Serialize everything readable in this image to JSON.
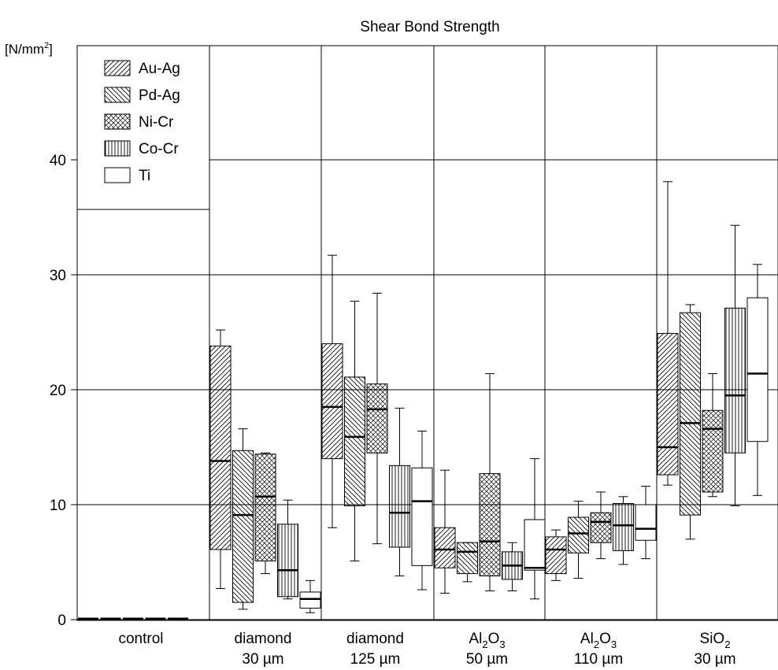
{
  "chart_data": {
    "type": "box",
    "title": "Shear Bond Strength",
    "ylabel": "[N/mm²]",
    "ylim": [
      0,
      48
    ],
    "yticks": [
      0,
      10,
      20,
      30,
      40
    ],
    "grid": true,
    "legend_position": "top-left",
    "groups": [
      {
        "name": "control",
        "line1": "control",
        "line2": ""
      },
      {
        "name": "diamond 30 µm",
        "line1": "diamond",
        "line2": "30 µm"
      },
      {
        "name": "diamond 125 µm",
        "line1": "diamond",
        "line2": "125 µm"
      },
      {
        "name": "Al2O3 50 µm",
        "line1": "Al",
        "sub1": "2",
        "mid": "O",
        "sub2": "3",
        "line2": "50 µm"
      },
      {
        "name": "Al2O3 110 µm",
        "line1": "Al",
        "sub1": "2",
        "mid": "O",
        "sub2": "3",
        "line2": "110 µm"
      },
      {
        "name": "SiO2 30 µm",
        "line1": "SiO",
        "sub1": "2",
        "mid": "",
        "sub2": "",
        "line2": "30 µm"
      }
    ],
    "series": [
      {
        "name": "Au-Ag",
        "pattern": "diag-right",
        "stats": [
          [
            0,
            0,
            0,
            0,
            0
          ],
          [
            2.7,
            6.1,
            13.8,
            23.8,
            25.2
          ],
          [
            8.0,
            14.0,
            18.5,
            24.0,
            31.7
          ],
          [
            2.3,
            4.5,
            6.1,
            8.0,
            13.0
          ],
          [
            3.4,
            4.0,
            6.1,
            7.2,
            7.8
          ],
          [
            11.7,
            12.6,
            15.0,
            24.9,
            38.1
          ]
        ]
      },
      {
        "name": "Pd-Ag",
        "pattern": "diag-left",
        "stats": [
          [
            0,
            0,
            0,
            0,
            0
          ],
          [
            0.9,
            1.5,
            9.1,
            14.7,
            16.6
          ],
          [
            5.1,
            9.9,
            15.9,
            21.1,
            27.7
          ],
          [
            3.3,
            4.0,
            5.9,
            6.7,
            6.7
          ],
          [
            3.6,
            5.8,
            7.5,
            8.9,
            10.3
          ],
          [
            7.0,
            9.1,
            17.1,
            26.7,
            27.4
          ]
        ]
      },
      {
        "name": "Ni-Cr",
        "pattern": "crosshatch",
        "stats": [
          [
            0,
            0,
            0,
            0,
            0
          ],
          [
            4.0,
            5.1,
            10.7,
            14.4,
            14.5
          ],
          [
            6.6,
            14.5,
            18.3,
            20.5,
            28.4
          ],
          [
            2.5,
            3.8,
            6.8,
            12.7,
            21.4
          ],
          [
            5.3,
            6.7,
            8.5,
            9.3,
            11.1
          ],
          [
            10.7,
            11.1,
            16.6,
            18.2,
            21.4
          ]
        ]
      },
      {
        "name": "Co-Cr",
        "pattern": "vertical",
        "stats": [
          [
            0,
            0,
            0,
            0,
            0
          ],
          [
            1.8,
            2.0,
            4.3,
            8.3,
            10.4
          ],
          [
            3.8,
            6.3,
            9.3,
            13.4,
            18.4
          ],
          [
            2.5,
            3.5,
            4.7,
            5.9,
            6.7
          ],
          [
            4.8,
            6.0,
            8.2,
            10.1,
            10.7
          ],
          [
            9.9,
            14.5,
            19.5,
            27.1,
            34.3
          ]
        ]
      },
      {
        "name": "Ti",
        "pattern": "none",
        "stats": [
          [
            0,
            0,
            0,
            0,
            0
          ],
          [
            0.6,
            1.0,
            1.8,
            2.4,
            3.4
          ],
          [
            2.6,
            4.7,
            10.3,
            13.2,
            16.4
          ],
          [
            1.8,
            4.3,
            4.5,
            8.7,
            14.0
          ],
          [
            5.3,
            6.9,
            7.9,
            10.0,
            11.6
          ],
          [
            10.8,
            15.5,
            21.4,
            28.0,
            30.9
          ]
        ]
      }
    ]
  }
}
